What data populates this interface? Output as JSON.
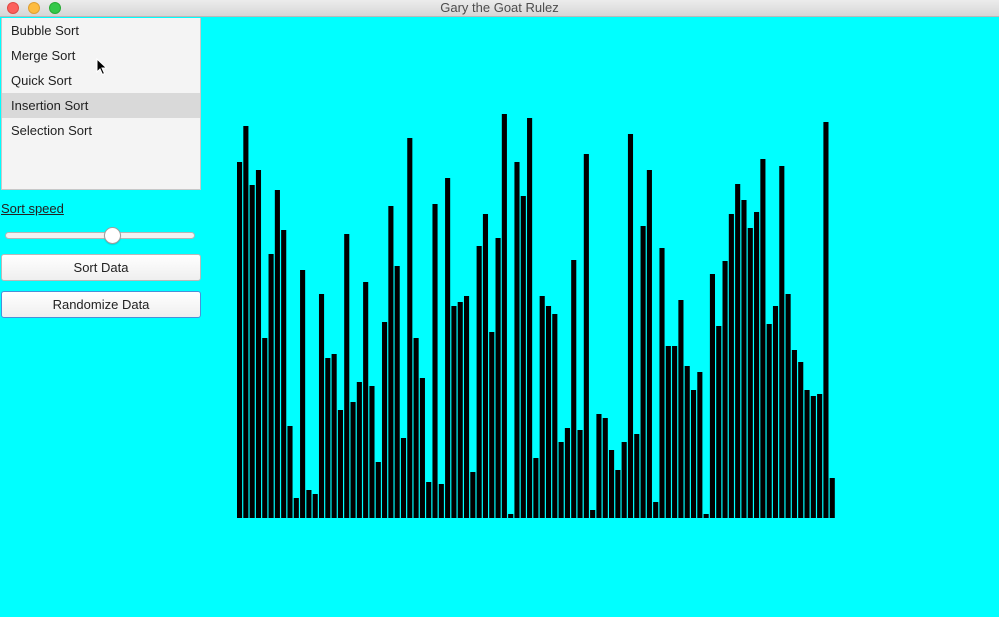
{
  "window": {
    "title": "Gary the Goat Rulez"
  },
  "algorithms": [
    {
      "label": "Bubble Sort"
    },
    {
      "label": "Merge Sort"
    },
    {
      "label": "Quick Sort"
    },
    {
      "label": "Insertion Sort"
    },
    {
      "label": "Selection Sort"
    }
  ],
  "selected_algorithm_index": 3,
  "speed": {
    "label": "Sort speed",
    "value": 0.57
  },
  "buttons": {
    "sort_label": "Sort Data",
    "randomize_label": "Randomize Data"
  },
  "colors": {
    "background": "#00ffff",
    "bar": "#000000",
    "selected": "#d9d9d9"
  },
  "icons": {
    "cursor": "mouse-pointer-icon"
  },
  "chart_data": {
    "type": "bar",
    "ylim": [
      0,
      400
    ],
    "values": [
      356,
      392,
      333,
      348,
      180,
      264,
      328,
      288,
      92,
      20,
      248,
      28,
      24,
      224,
      160,
      164,
      108,
      284,
      116,
      136,
      236,
      132,
      56,
      196,
      312,
      252,
      80,
      380,
      180,
      140,
      36,
      314,
      34,
      340,
      212,
      216,
      222,
      46,
      272,
      304,
      186,
      280,
      404,
      4,
      356,
      322,
      400,
      60,
      222,
      212,
      204,
      76,
      90,
      258,
      88,
      364,
      8,
      104,
      100,
      68,
      48,
      76,
      384,
      84,
      292,
      348,
      16,
      270,
      172,
      172,
      218,
      152,
      128,
      146,
      4,
      244,
      192,
      257,
      304,
      334,
      318,
      290,
      306,
      359,
      194,
      212,
      352,
      224,
      168,
      156,
      128,
      122,
      124,
      396,
      40
    ]
  }
}
